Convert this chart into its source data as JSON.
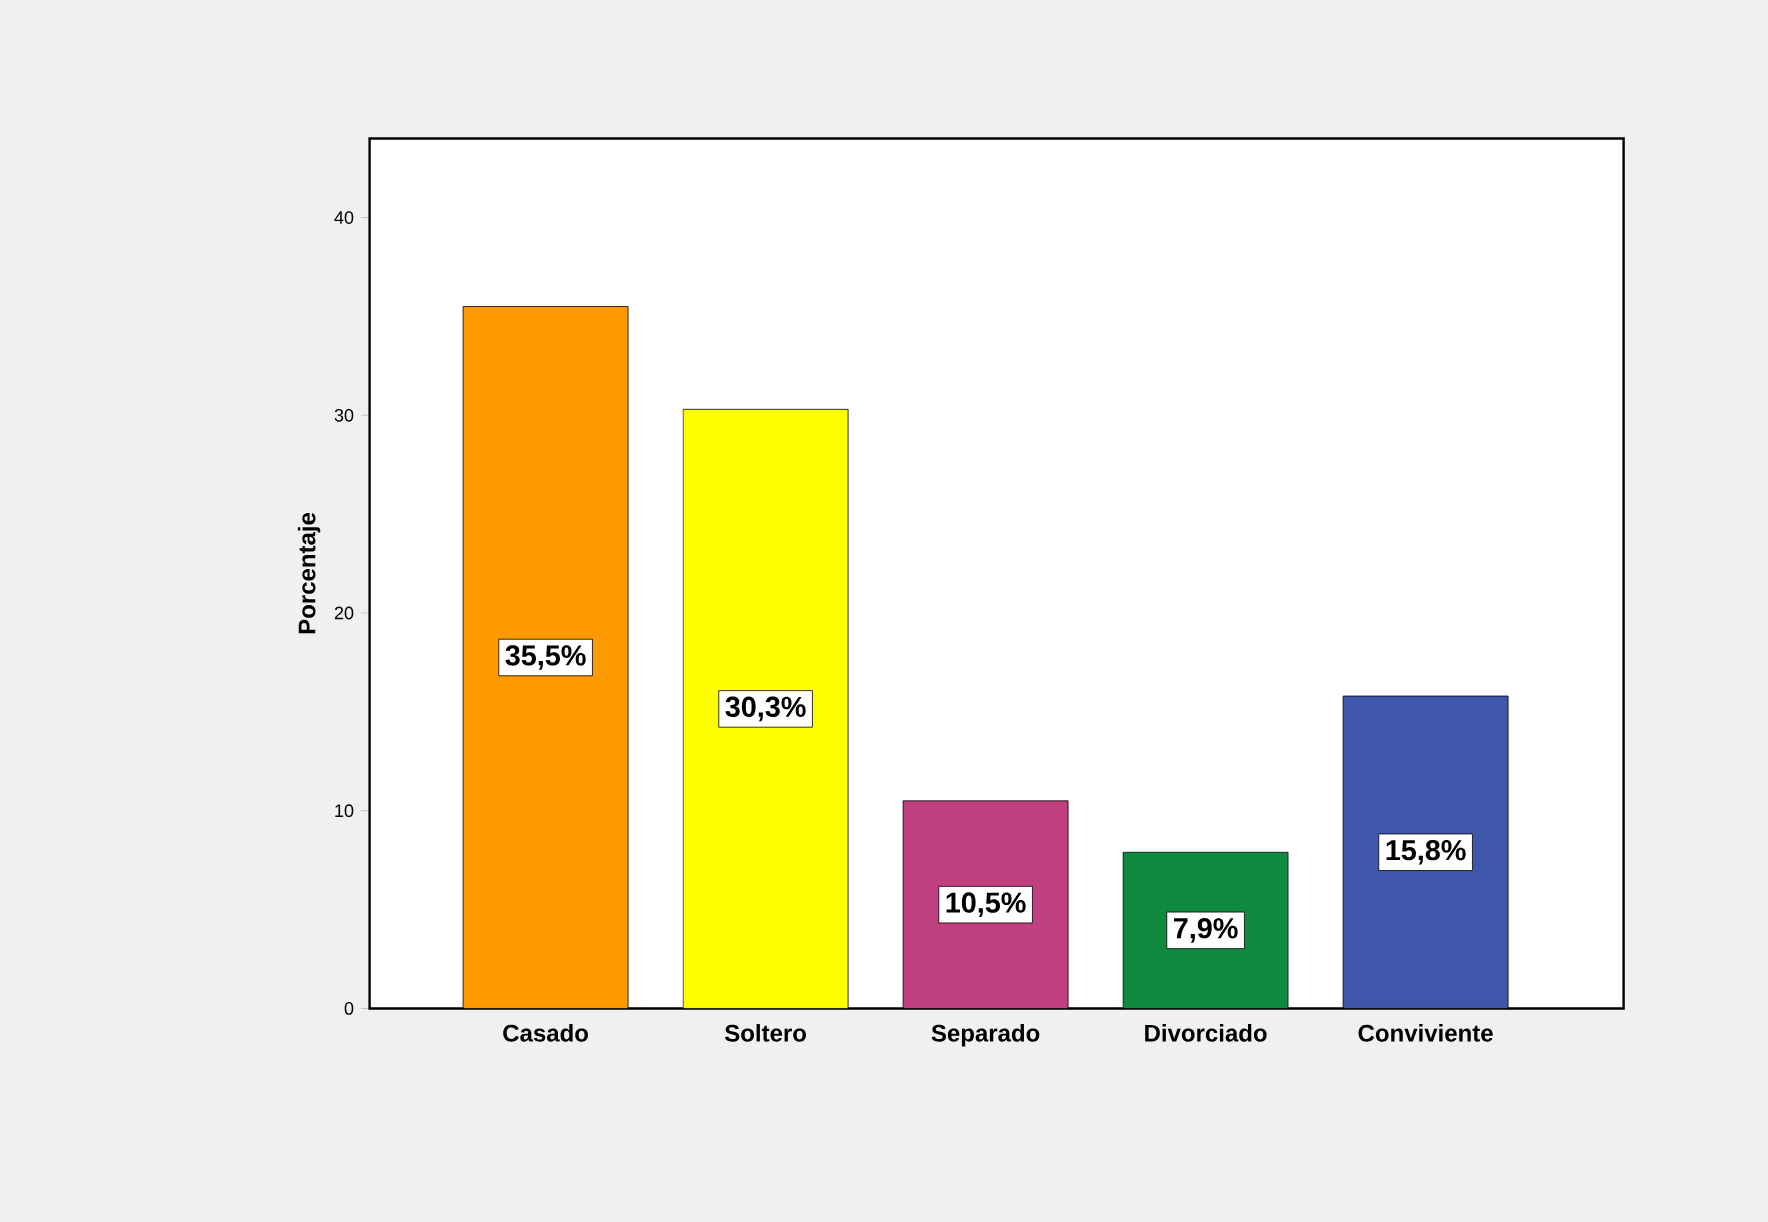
{
  "chart_data": {
    "type": "bar",
    "ylabel": "Porcentaje",
    "categories": [
      "Casado",
      "Soltero",
      "Separado",
      "Divorciado",
      "Conviviente"
    ],
    "values": [
      35.5,
      30.3,
      10.5,
      7.9,
      15.8
    ],
    "value_labels": [
      "35,5%",
      "30,3%",
      "10,5%",
      "7,9%",
      "15,8%"
    ],
    "colors": [
      "#ff9900",
      "#ffff00",
      "#bf3f7f",
      "#0f8a3f",
      "#3f57ab"
    ],
    "ylim": [
      0,
      44
    ],
    "yticks": [
      0,
      10,
      20,
      30,
      40
    ]
  }
}
